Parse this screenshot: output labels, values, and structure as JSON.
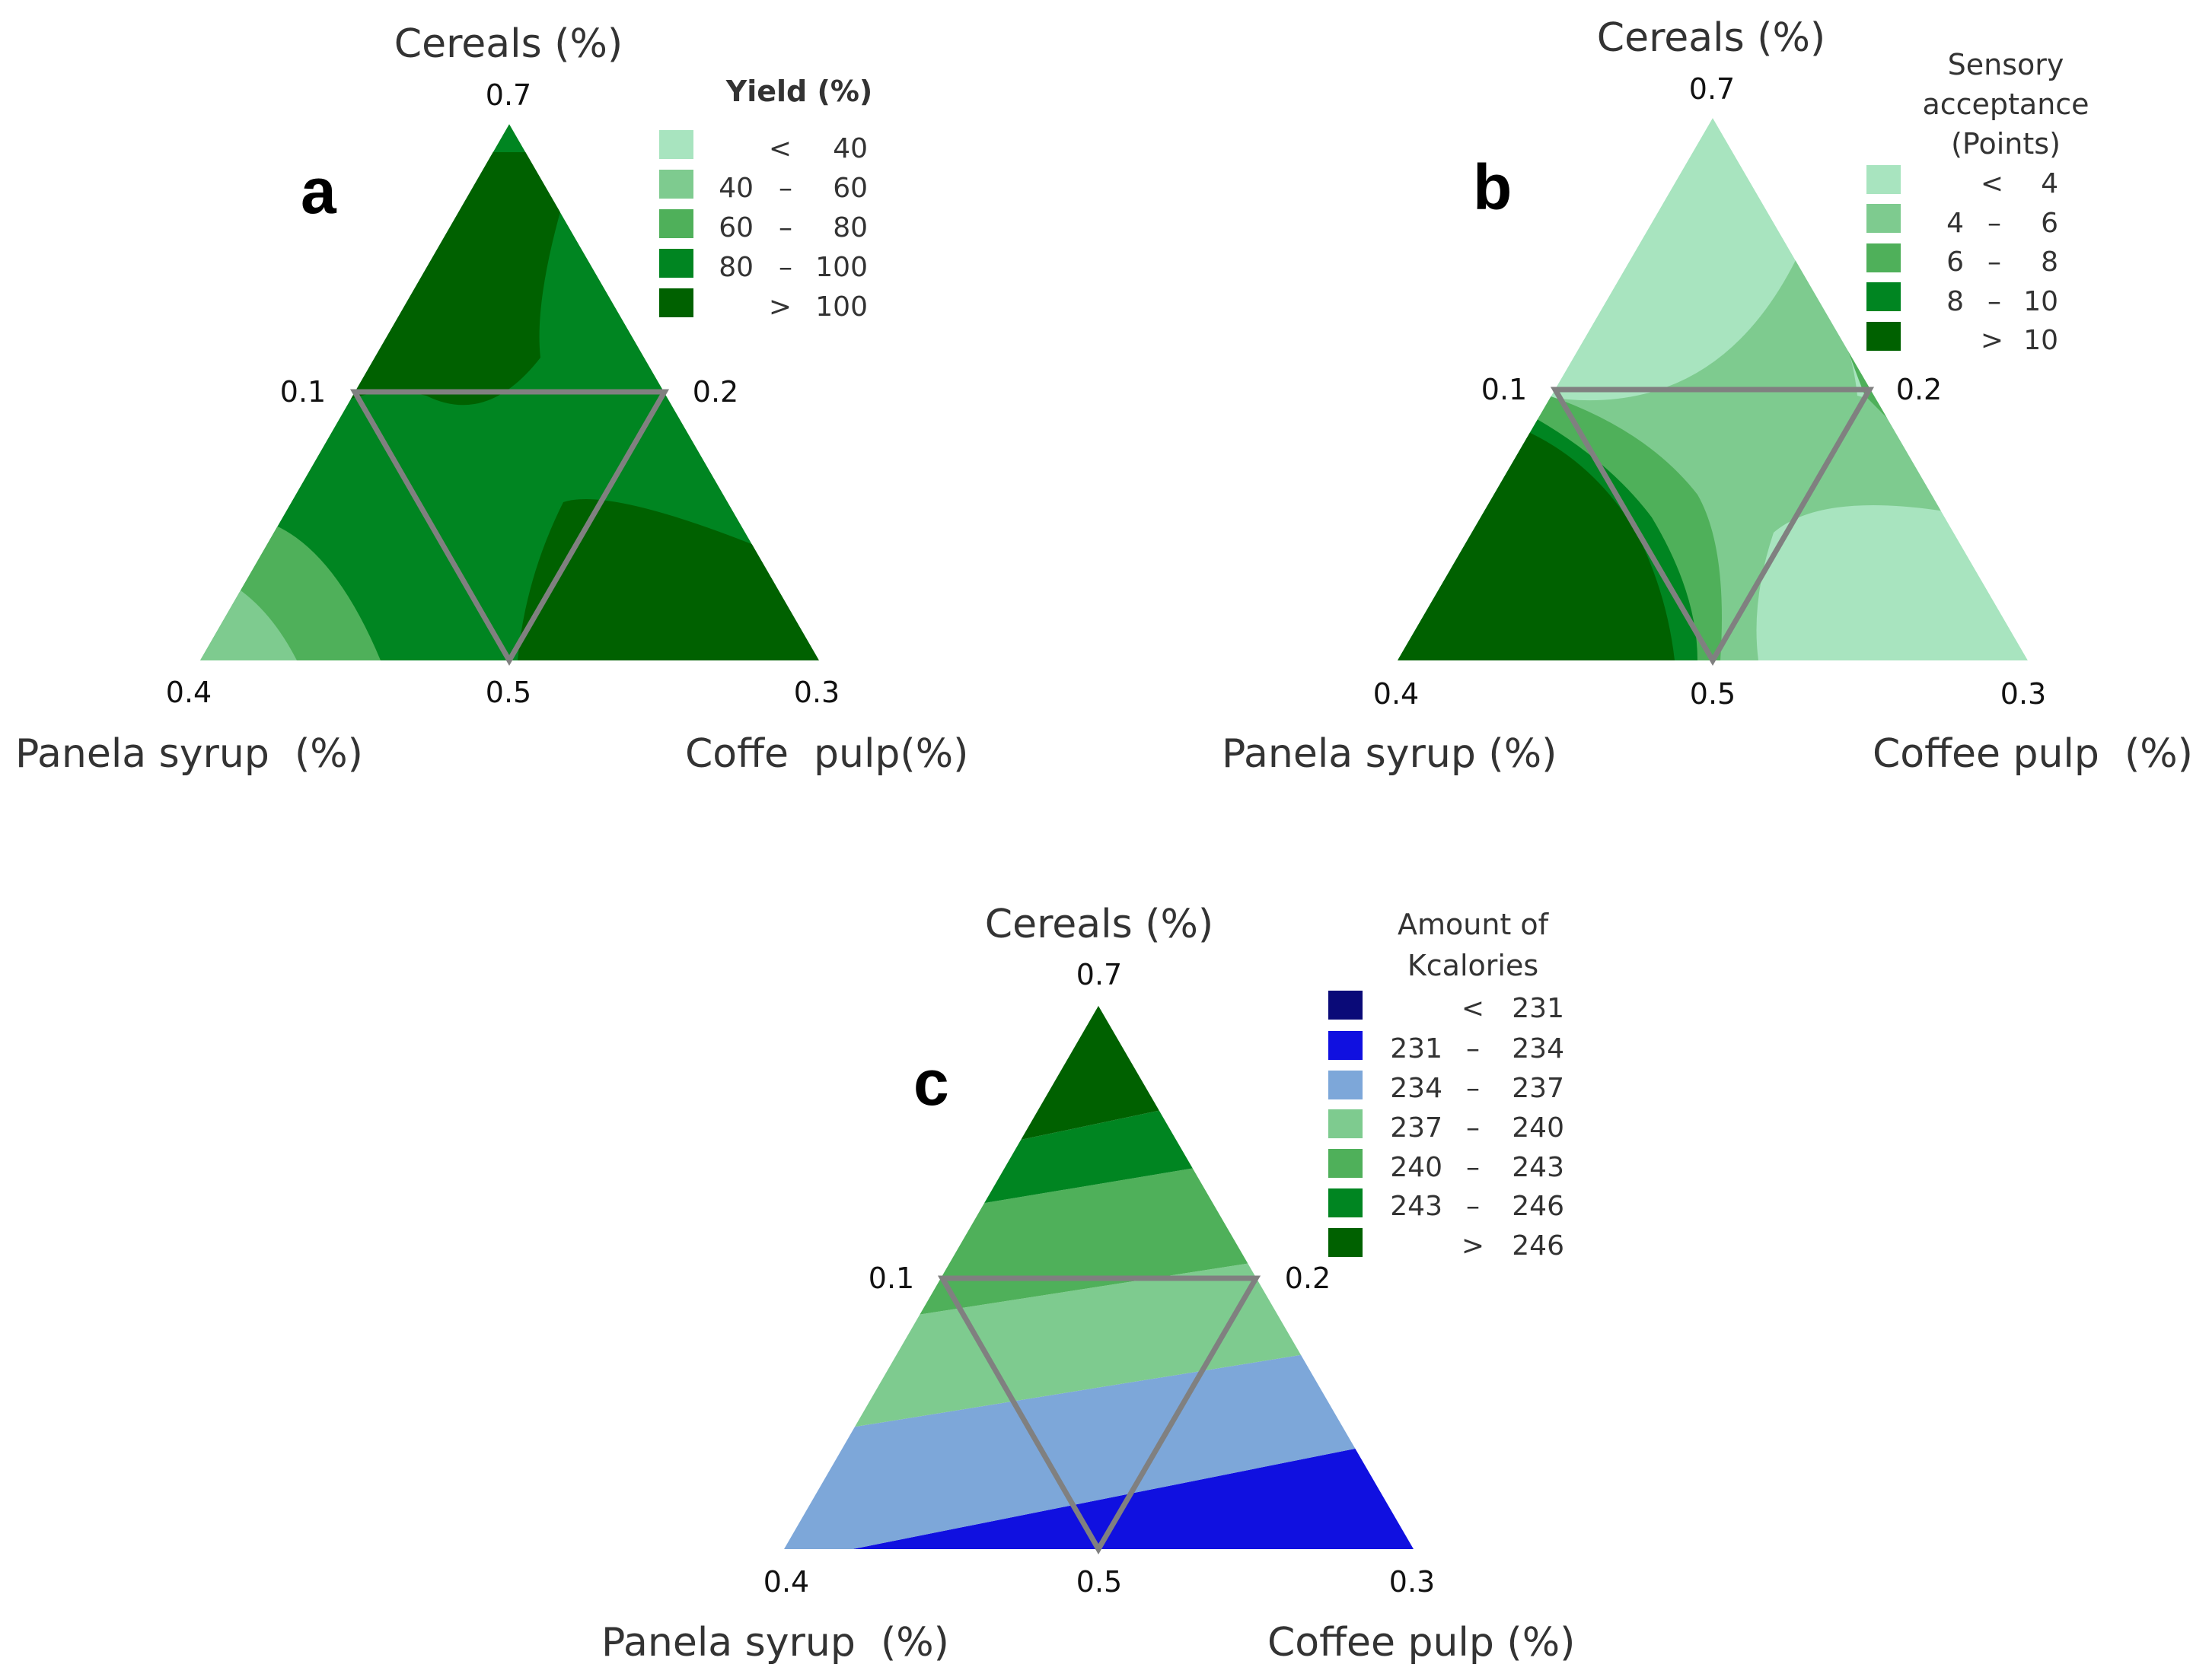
{
  "chart_data": [
    {
      "type": "ternary-contour",
      "panel_letter": "a",
      "vertex_labels": {
        "top": "Cereals (%)",
        "left": "Panela syrup  (%)",
        "right": "Coffe  pulp(%)"
      },
      "vertex_values": {
        "top": "0.7",
        "left": "0.4",
        "right": "0.3"
      },
      "edge_values": {
        "left_mid": "0.1",
        "right_mid": "0.2",
        "bottom_mid": "0.5"
      },
      "legend": {
        "title": "Yield (%)",
        "entries": [
          {
            "low": "<",
            "dash": "",
            "high": "40",
            "color": "#a8e4bf"
          },
          {
            "low": "40",
            "dash": "–",
            "high": "60",
            "color": "#7ecb8f"
          },
          {
            "low": "60",
            "dash": "–",
            "high": "80",
            "color": "#4fb05a"
          },
          {
            "low": "80",
            "dash": "–",
            "high": "100",
            "color": "#008521"
          },
          {
            "low": ">",
            "dash": "",
            "high": "100",
            "color": "#006100"
          }
        ]
      }
    },
    {
      "type": "ternary-contour",
      "panel_letter": "b",
      "vertex_labels": {
        "top": "Cereals (%)",
        "left": "Panela syrup (%)",
        "right": "Coffee pulp  (%)"
      },
      "vertex_values": {
        "top": "0.7",
        "left": "0.4",
        "right": "0.3"
      },
      "edge_values": {
        "left_mid": "0.1",
        "right_mid": "0.2",
        "bottom_mid": "0.5"
      },
      "legend": {
        "title_lines": [
          "Sensory",
          "acceptance",
          "(Points)"
        ],
        "entries": [
          {
            "low": "<",
            "dash": "",
            "high": "4",
            "color": "#a8e4bf"
          },
          {
            "low": "4",
            "dash": "–",
            "high": "6",
            "color": "#7ecb8f"
          },
          {
            "low": "6",
            "dash": "–",
            "high": "8",
            "color": "#4fb05a"
          },
          {
            "low": "8",
            "dash": "–",
            "high": "10",
            "color": "#008521"
          },
          {
            "low": ">",
            "dash": "",
            "high": "10",
            "color": "#006100"
          }
        ]
      }
    },
    {
      "type": "ternary-contour",
      "panel_letter": "c",
      "vertex_labels": {
        "top": "Cereals (%)",
        "left": "Panela syrup  (%)",
        "right": "Coffee pulp (%)"
      },
      "vertex_values": {
        "top": "0.7",
        "left": "0.4",
        "right": "0.3"
      },
      "edge_values": {
        "left_mid": "0.1",
        "right_mid": "0.2",
        "bottom_mid": "0.5"
      },
      "legend": {
        "title_lines": [
          "Amount of",
          "Kcalories"
        ],
        "entries": [
          {
            "low": "<",
            "dash": "",
            "high": "231",
            "color": "#0a0a78"
          },
          {
            "low": "231",
            "dash": "–",
            "high": "234",
            "color": "#1010e0"
          },
          {
            "low": "234",
            "dash": "–",
            "high": "237",
            "color": "#7da7d9"
          },
          {
            "low": "237",
            "dash": "–",
            "high": "240",
            "color": "#7ecb8f"
          },
          {
            "low": "240",
            "dash": "–",
            "high": "243",
            "color": "#4fb05a"
          },
          {
            "low": "243",
            "dash": "–",
            "high": "246",
            "color": "#008521"
          },
          {
            "low": ">",
            "dash": "",
            "high": "246",
            "color": "#006100"
          }
        ]
      }
    }
  ]
}
